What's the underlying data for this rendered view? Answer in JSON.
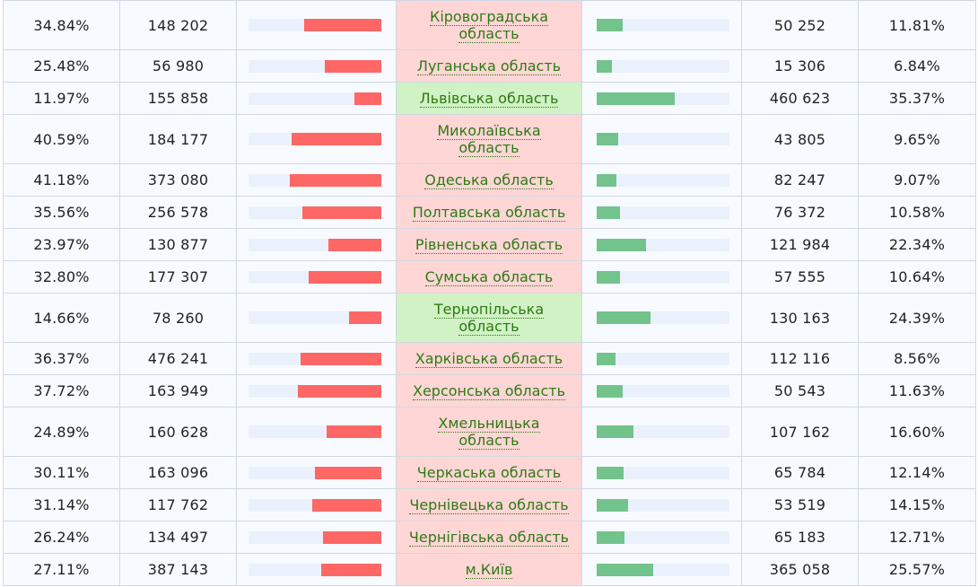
{
  "colors": {
    "left_bar": "#ff6666",
    "right_bar": "#72c38c",
    "track": "#ebf1fc",
    "region_loss_bg": "#ffd6d6",
    "region_win_bg": "#d0f2c4",
    "link": "#2e7a14"
  },
  "rows": [
    {
      "left_pct": "34.84%",
      "left_votes": "148 202",
      "left_share": 34.84,
      "region_line1": "Кіровоградська",
      "region_line2": "область",
      "right_votes": "50 252",
      "right_pct": "11.81%",
      "right_share": 11.81,
      "win": false,
      "double": true
    },
    {
      "left_pct": "25.48%",
      "left_votes": "56 980",
      "left_share": 25.48,
      "region_line1": "Луганська область",
      "region_line2": "",
      "right_votes": "15 306",
      "right_pct": "6.84%",
      "right_share": 6.84,
      "win": false,
      "double": false
    },
    {
      "left_pct": "11.97%",
      "left_votes": "155 858",
      "left_share": 11.97,
      "region_line1": "Львівська область",
      "region_line2": "",
      "right_votes": "460 623",
      "right_pct": "35.37%",
      "right_share": 35.37,
      "win": true,
      "double": false
    },
    {
      "left_pct": "40.59%",
      "left_votes": "184 177",
      "left_share": 40.59,
      "region_line1": "Миколаївська",
      "region_line2": "область",
      "right_votes": "43 805",
      "right_pct": "9.65%",
      "right_share": 9.65,
      "win": false,
      "double": true
    },
    {
      "left_pct": "41.18%",
      "left_votes": "373 080",
      "left_share": 41.18,
      "region_line1": "Одеська область",
      "region_line2": "",
      "right_votes": "82 247",
      "right_pct": "9.07%",
      "right_share": 9.07,
      "win": false,
      "double": false
    },
    {
      "left_pct": "35.56%",
      "left_votes": "256 578",
      "left_share": 35.56,
      "region_line1": "Полтавська область",
      "region_line2": "",
      "right_votes": "76 372",
      "right_pct": "10.58%",
      "right_share": 10.58,
      "win": false,
      "double": false
    },
    {
      "left_pct": "23.97%",
      "left_votes": "130 877",
      "left_share": 23.97,
      "region_line1": "Рівненська область",
      "region_line2": "",
      "right_votes": "121 984",
      "right_pct": "22.34%",
      "right_share": 22.34,
      "win": false,
      "double": false
    },
    {
      "left_pct": "32.80%",
      "left_votes": "177 307",
      "left_share": 32.8,
      "region_line1": "Сумська область",
      "region_line2": "",
      "right_votes": "57 555",
      "right_pct": "10.64%",
      "right_share": 10.64,
      "win": false,
      "double": false
    },
    {
      "left_pct": "14.66%",
      "left_votes": "78 260",
      "left_share": 14.66,
      "region_line1": "Тернопільська",
      "region_line2": "область",
      "right_votes": "130 163",
      "right_pct": "24.39%",
      "right_share": 24.39,
      "win": true,
      "double": true
    },
    {
      "left_pct": "36.37%",
      "left_votes": "476 241",
      "left_share": 36.37,
      "region_line1": "Харківська область",
      "region_line2": "",
      "right_votes": "112 116",
      "right_pct": "8.56%",
      "right_share": 8.56,
      "win": false,
      "double": false
    },
    {
      "left_pct": "37.72%",
      "left_votes": "163 949",
      "left_share": 37.72,
      "region_line1": "Херсонська область",
      "region_line2": "",
      "right_votes": "50 543",
      "right_pct": "11.63%",
      "right_share": 11.63,
      "win": false,
      "double": false
    },
    {
      "left_pct": "24.89%",
      "left_votes": "160 628",
      "left_share": 24.89,
      "region_line1": "Хмельницька",
      "region_line2": "область",
      "right_votes": "107 162",
      "right_pct": "16.60%",
      "right_share": 16.6,
      "win": false,
      "double": true
    },
    {
      "left_pct": "30.11%",
      "left_votes": "163 096",
      "left_share": 30.11,
      "region_line1": "Черкаська область",
      "region_line2": "",
      "right_votes": "65 784",
      "right_pct": "12.14%",
      "right_share": 12.14,
      "win": false,
      "double": false
    },
    {
      "left_pct": "31.14%",
      "left_votes": "117 762",
      "left_share": 31.14,
      "region_line1": "Чернівецька область",
      "region_line2": "",
      "right_votes": "53 519",
      "right_pct": "14.15%",
      "right_share": 14.15,
      "win": false,
      "double": false
    },
    {
      "left_pct": "26.24%",
      "left_votes": "134 497",
      "left_share": 26.24,
      "region_line1": "Чернігівська область",
      "region_line2": "",
      "right_votes": "65 183",
      "right_pct": "12.71%",
      "right_share": 12.71,
      "win": false,
      "double": false
    },
    {
      "left_pct": "27.11%",
      "left_votes": "387 143",
      "left_share": 27.11,
      "region_line1": "м.Київ",
      "region_line2": "",
      "right_votes": "365 058",
      "right_pct": "25.57%",
      "right_share": 25.57,
      "win": false,
      "double": false
    }
  ]
}
